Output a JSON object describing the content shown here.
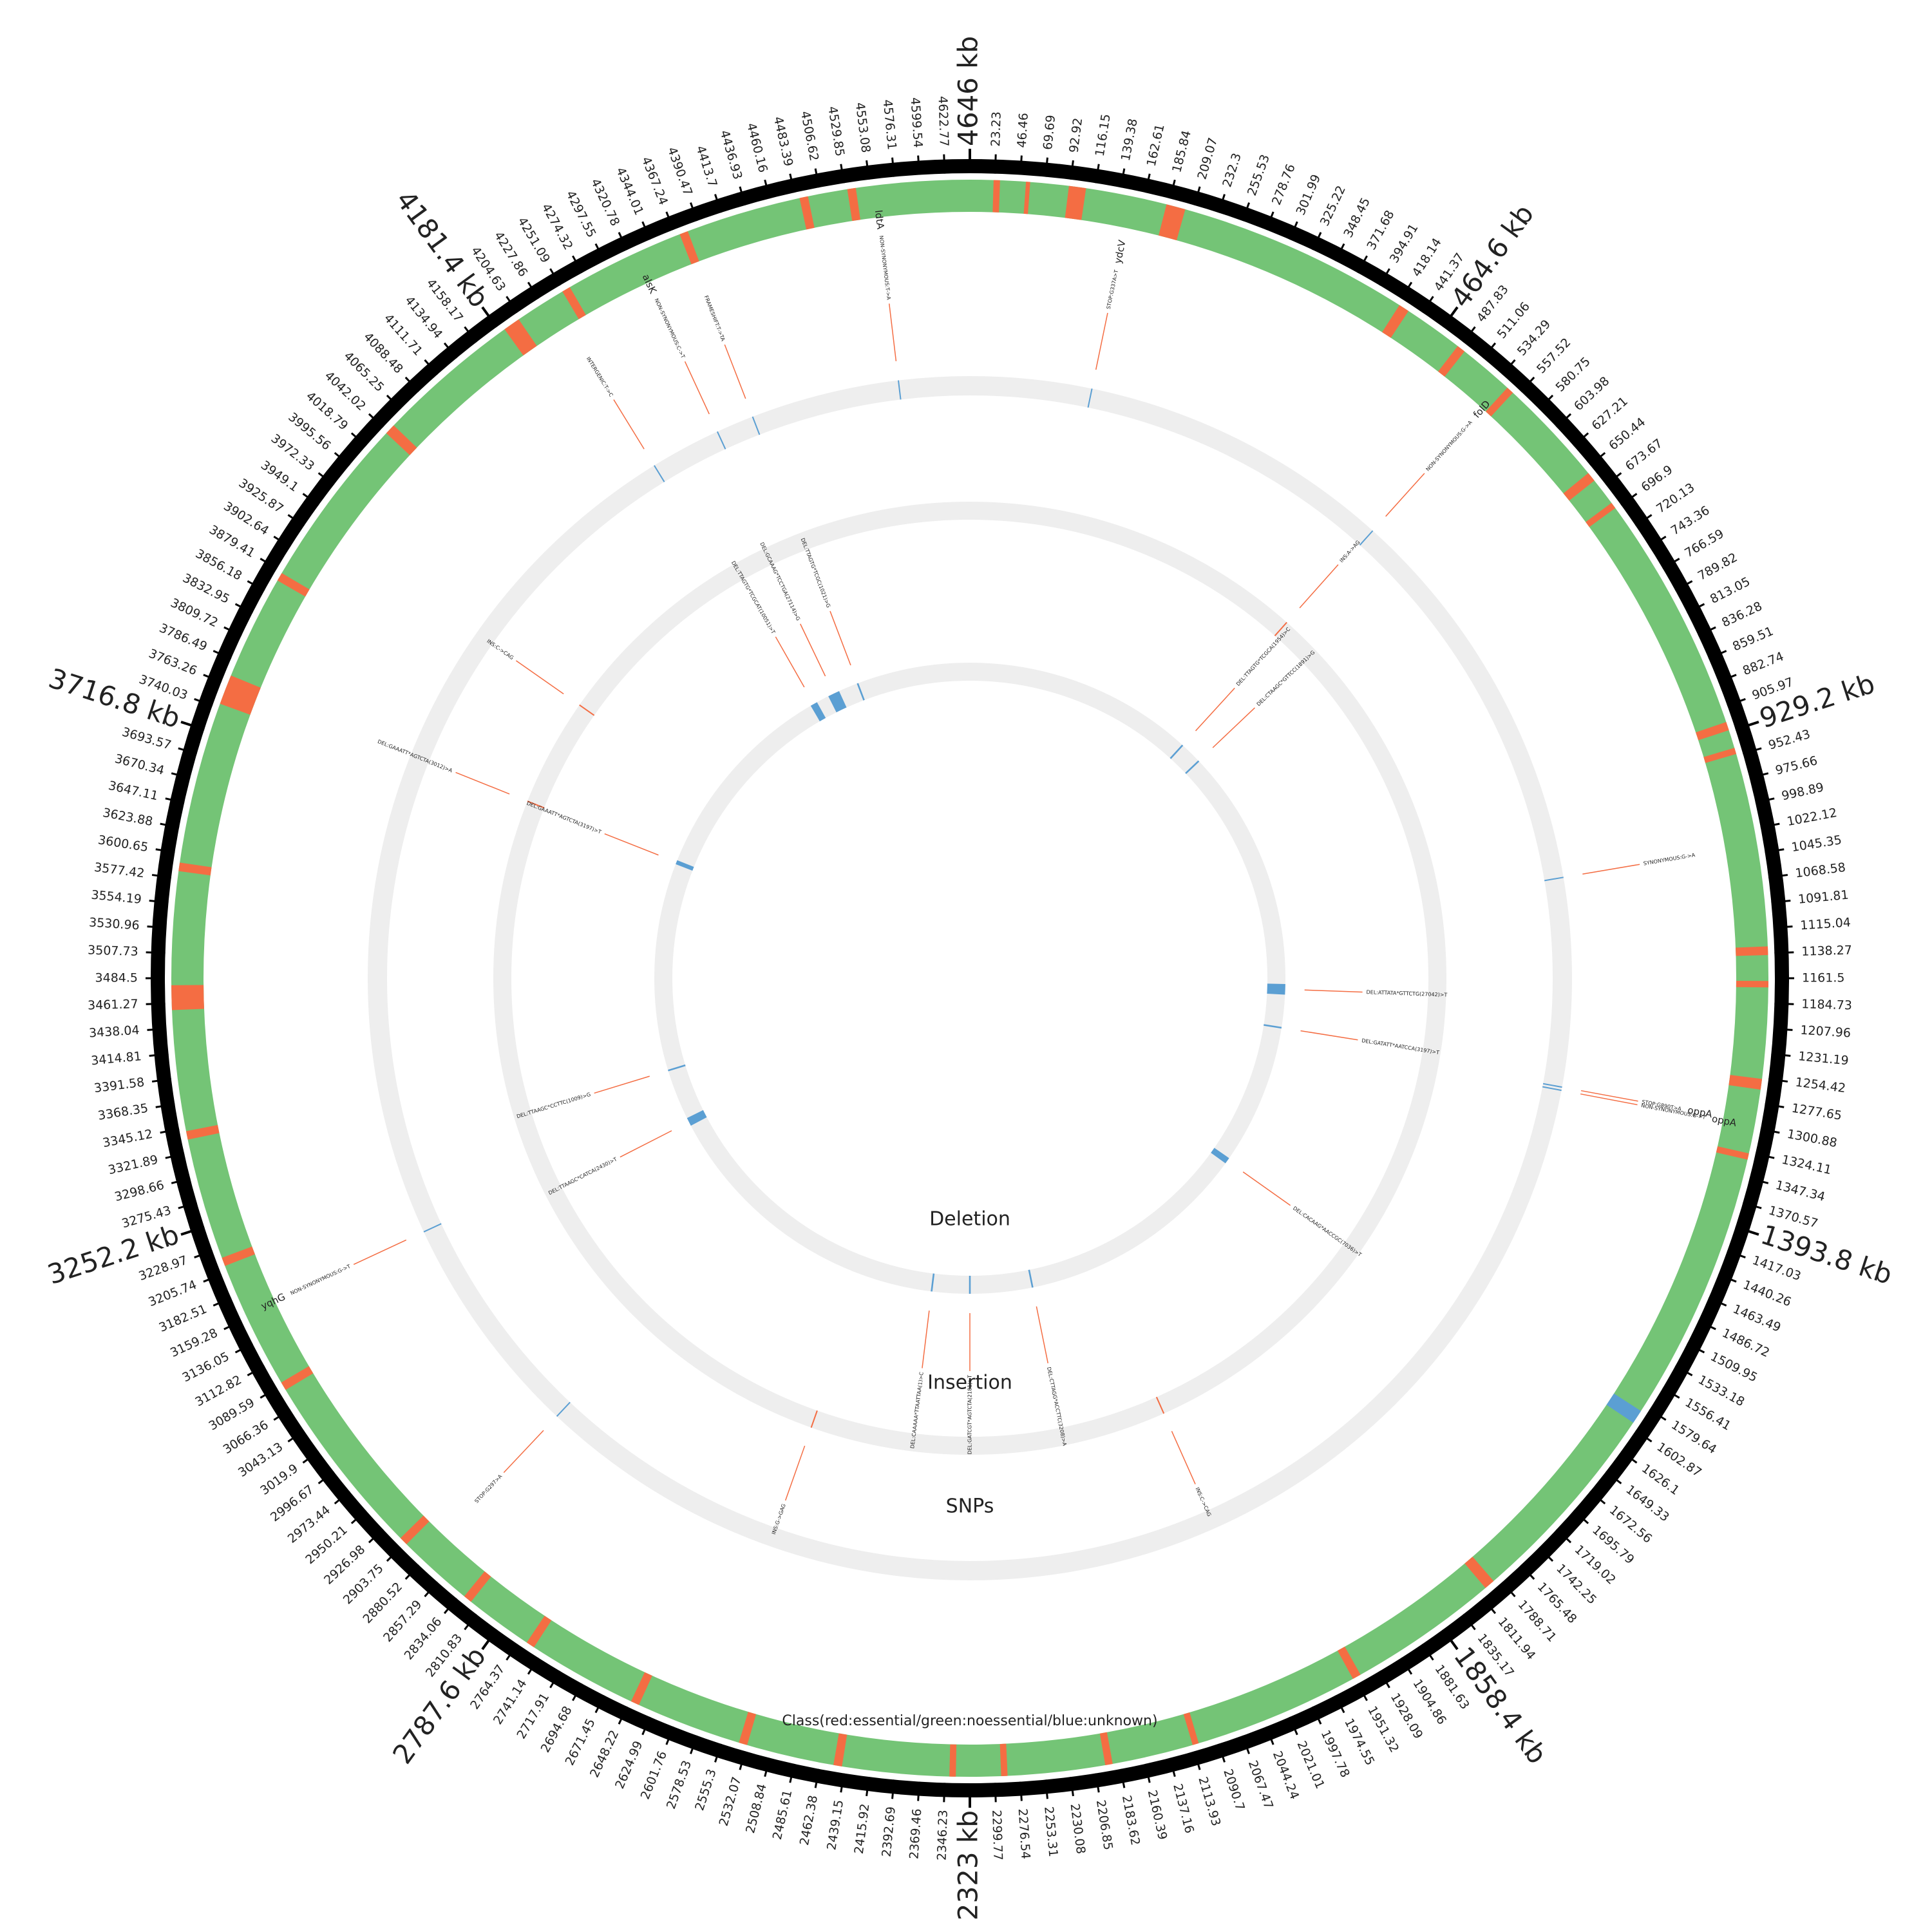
{
  "chart_data": {
    "type": "circos",
    "xlim": [
      0,
      4646
    ],
    "xticks": [
      23.23,
      46.46,
      69.69,
      92.92,
      116.15,
      139.38,
      162.61,
      185.84,
      209.07,
      232.3,
      255.53,
      278.76,
      301.99,
      325.22,
      348.45,
      371.68,
      394.91,
      418.14,
      441.37,
      {
        "value": 464.6,
        "label": "464.6 kb"
      },
      487.83,
      511.06,
      534.29,
      557.52,
      580.75,
      603.98,
      627.21,
      650.44,
      673.67,
      696.9,
      720.13,
      743.36,
      766.59,
      789.82,
      813.05,
      836.28,
      859.51,
      882.74,
      905.97,
      {
        "value": 929.2,
        "label": "929.2 kb"
      },
      952.43,
      975.66,
      998.89,
      1022.12,
      1045.35,
      1068.58,
      1091.81,
      1115.04,
      1138.27,
      1161.5,
      1184.73,
      1207.96,
      1231.19,
      1254.42,
      1277.65,
      1300.88,
      1324.11,
      1347.34,
      1370.57,
      {
        "value": 1393.8,
        "label": "1393.8 kb"
      },
      1417.03,
      1440.26,
      1463.49,
      1486.72,
      1509.95,
      1533.18,
      1556.41,
      1579.64,
      1602.87,
      1626.1,
      1649.33,
      1672.56,
      1695.79,
      1719.02,
      1742.25,
      1765.48,
      1788.71,
      1811.94,
      1835.17,
      {
        "value": 1858.4,
        "label": "1858.4 kb"
      },
      1881.63,
      1904.86,
      1928.09,
      1951.32,
      1974.55,
      1997.78,
      2021.01,
      2044.24,
      2067.47,
      2090.7,
      2113.93,
      2137.16,
      2160.39,
      2183.62,
      2206.85,
      2230.08,
      2253.31,
      2276.54,
      2299.77,
      {
        "value": 2323,
        "label": "2323 kb"
      },
      2346.23,
      2369.46,
      2392.69,
      2415.92,
      2439.15,
      2462.38,
      2485.61,
      2508.84,
      2532.07,
      2555.3,
      2578.53,
      2601.76,
      2624.99,
      2648.22,
      2671.45,
      2694.68,
      2717.91,
      2741.14,
      2764.37,
      {
        "value": 2787.6,
        "label": "2787.6 kb"
      },
      2810.83,
      2834.06,
      2857.29,
      2880.52,
      2903.75,
      2926.98,
      2950.21,
      2973.44,
      2996.67,
      3019.9,
      3043.13,
      3066.36,
      3089.59,
      3112.82,
      3136.05,
      3159.28,
      3182.51,
      3205.74,
      3228.97,
      {
        "value": 3252.2,
        "label": "3252.2 kb"
      },
      3275.43,
      3298.66,
      3321.89,
      3345.12,
      3368.35,
      3391.58,
      3414.81,
      3438.04,
      3461.27,
      3484.5,
      3507.73,
      3530.96,
      3554.19,
      3577.42,
      3600.65,
      3623.88,
      3647.11,
      3670.34,
      3693.57,
      {
        "value": 3716.8,
        "label": "3716.8 kb"
      },
      3740.03,
      3763.26,
      3786.49,
      3809.72,
      3832.95,
      3856.18,
      3879.41,
      3902.64,
      3925.87,
      3949.1,
      3972.33,
      3995.56,
      4018.79,
      4042.02,
      4065.25,
      4088.48,
      4111.71,
      4134.94,
      4158.17,
      {
        "value": 4181.4,
        "label": "4181.4 kb"
      },
      4204.63,
      4227.86,
      4251.09,
      4274.32,
      4297.55,
      4320.78,
      4344.01,
      4367.24,
      4390.47,
      4413.7,
      4436.93,
      4460.16,
      4483.39,
      4506.62,
      4529.85,
      4553.08,
      4576.31,
      4599.54,
      4622.77,
      {
        "value": 4646,
        "label": "4646 kb"
      }
    ],
    "tracks": [
      {
        "name": "Class(red:essential/green:noessential/blue:unknown)",
        "color": "#74c476",
        "segments": [
          {
            "start": 22,
            "end": 28,
            "color": "#f46d43"
          },
          {
            "start": 52,
            "end": 56,
            "color": "#f46d43"
          },
          {
            "start": 92,
            "end": 108,
            "color": "#f46d43"
          },
          {
            "start": 184,
            "end": 202,
            "color": "#f46d43"
          },
          {
            "start": 420,
            "end": 430,
            "color": "#f46d43"
          },
          {
            "start": 486,
            "end": 494,
            "color": "#f46d43"
          },
          {
            "start": 546,
            "end": 553,
            "color": "#f46d43"
          },
          {
            "start": 655,
            "end": 664,
            "color": "#f46d43"
          },
          {
            "start": 690,
            "end": 696,
            "color": "#f46d43"
          },
          {
            "start": 920,
            "end": 928,
            "color": "#f46d43"
          },
          {
            "start": 945,
            "end": 951,
            "color": "#f46d43"
          },
          {
            "start": 1132,
            "end": 1140,
            "color": "#f46d43"
          },
          {
            "start": 1164,
            "end": 1170,
            "color": "#f46d43"
          },
          {
            "start": 1255,
            "end": 1265,
            "color": "#f46d43"
          },
          {
            "start": 1325,
            "end": 1331,
            "color": "#f46d43"
          },
          {
            "start": 1585,
            "end": 1598,
            "color": "#5b9fd3"
          },
          {
            "start": 1794,
            "end": 1804,
            "color": "#f46d43"
          },
          {
            "start": 1945,
            "end": 1953,
            "color": "#f46d43"
          },
          {
            "start": 2108,
            "end": 2114,
            "color": "#f46d43"
          },
          {
            "start": 2190,
            "end": 2197,
            "color": "#f46d43"
          },
          {
            "start": 2288,
            "end": 2294,
            "color": "#f46d43"
          },
          {
            "start": 2336,
            "end": 2342,
            "color": "#f46d43"
          },
          {
            "start": 2442,
            "end": 2450,
            "color": "#f46d43"
          },
          {
            "start": 2532,
            "end": 2540,
            "color": "#f46d43"
          },
          {
            "start": 2639,
            "end": 2647,
            "color": "#f46d43"
          },
          {
            "start": 2750,
            "end": 2758,
            "color": "#f46d43"
          },
          {
            "start": 2822,
            "end": 2830,
            "color": "#f46d43"
          },
          {
            "start": 2902,
            "end": 2910,
            "color": "#f46d43"
          },
          {
            "start": 3084,
            "end": 3092,
            "color": "#f46d43"
          },
          {
            "start": 3212,
            "end": 3220,
            "color": "#f46d43"
          },
          {
            "start": 3334,
            "end": 3342,
            "color": "#f46d43"
          },
          {
            "start": 3455,
            "end": 3478,
            "color": "#f46d43"
          },
          {
            "start": 3584,
            "end": 3592,
            "color": "#f46d43"
          },
          {
            "start": 3744,
            "end": 3772,
            "color": "#f46d43"
          },
          {
            "start": 3870,
            "end": 3878,
            "color": "#f46d43"
          },
          {
            "start": 4040,
            "end": 4050,
            "color": "#f46d43"
          },
          {
            "start": 4186,
            "end": 4202,
            "color": "#f46d43"
          },
          {
            "start": 4250,
            "end": 4258,
            "color": "#f46d43"
          },
          {
            "start": 4371,
            "end": 4379,
            "color": "#f46d43"
          },
          {
            "start": 4487,
            "end": 4495,
            "color": "#f46d43"
          },
          {
            "start": 4532,
            "end": 4540,
            "color": "#f46d43"
          }
        ]
      },
      {
        "name": "SNPs",
        "color": "#5b9fd3",
        "line_color": "#f46d43",
        "features": [
          {
            "position": 4558,
            "label": "NON-SYNONYMOUS:T->A",
            "gene": "ldtA"
          },
          {
            "position": 151,
            "label": "STOP:G337A>T",
            "gene": "ydcV"
          },
          {
            "position": 542,
            "label": "NON-SYNONYMOUS:G->A",
            "gene": "folD"
          },
          {
            "position": 1037,
            "label": "SYNONYMOUS:G->A"
          },
          {
            "position": 1296,
            "label": "STOP:G890T>A",
            "gene": "oppA"
          },
          {
            "position": 1300,
            "label": "NON-SYNONYMOUS:G->T",
            "gene": "oppA"
          },
          {
            "position": 2882,
            "label": "STOP:G297>A"
          },
          {
            "position": 3163,
            "label": "NON-SYNONYMOUS:G->T",
            "gene": "yqhG"
          },
          {
            "position": 4238,
            "label": "INTERGENIC:T->C"
          },
          {
            "position": 4326,
            "label": "NON-SYNONYMOUS:C->T",
            "gene": "alsK"
          },
          {
            "position": 4373,
            "label": "FRAMESHIFT:T->TA"
          }
        ]
      },
      {
        "name": "Insertion",
        "color": "#f46d43",
        "line_color": "#f46d43",
        "features": [
          {
            "position": 538,
            "label": "INS:A->AG"
          },
          {
            "position": 2013,
            "label": "INS:C->CAG"
          },
          {
            "position": 2574,
            "label": "INS:G->GAG"
          },
          {
            "position": 3766,
            "label": "DEL:GAAATT*AGTCTA(3012)>A"
          },
          {
            "position": 3936,
            "label": "INS:C->CAG"
          }
        ]
      },
      {
        "name": "Deletion",
        "color": "#5b9fd3",
        "line_color": "#f46d43",
        "features": [
          {
            "start": 545,
            "end": 549,
            "label": "DEL:TTAGTG*TCGCA(1954)>C"
          },
          {
            "start": 598,
            "end": 602,
            "label": "DEL:CTAAGC*GTTCC(1891)>G"
          },
          {
            "start": 1175,
            "end": 1200,
            "label": "DEL:ATTATA*GTTCTG(27042)>T"
          },
          {
            "start": 1276,
            "end": 1280,
            "label": "DEL:GATATT*AATCCA(3197)>T"
          },
          {
            "start": 1610,
            "end": 1625,
            "label": "DEL:CACAAG*AACCGC(7036)>T"
          },
          {
            "start": 2173,
            "end": 2177,
            "label": "DEL:CTTAGG*ACCTTC(3208)>A"
          },
          {
            "start": 2321,
            "end": 2325,
            "label": "DEL:GATCGT*AGTCTA(2181)>T"
          },
          {
            "start": 2411,
            "end": 2415,
            "label": "DEL:CAAAAA*TTAATTAA(1)>C"
          },
          {
            "start": 3125,
            "end": 3145,
            "label": "DEL:TTAAGC*CATCA(2430)>T"
          },
          {
            "start": 3263,
            "end": 3267,
            "label": "DEL:TTAAGC*CCTTC(1009)>G"
          },
          {
            "start": 3758,
            "end": 3768,
            "label": "DEL:GAAATT*AGTCTA(3197)>T"
          },
          {
            "start": 4255,
            "end": 4272,
            "label": "DEL:TTAGTG*TCGCAT(10051)>T"
          },
          {
            "start": 4302,
            "end": 4330,
            "label": "DEL:GCAAAG*TCCTGA(27114)>G"
          },
          {
            "start": 4375,
            "end": 4379,
            "label": "DEL:TTAGTG*TCGC(1021)>G"
          }
        ]
      }
    ]
  }
}
